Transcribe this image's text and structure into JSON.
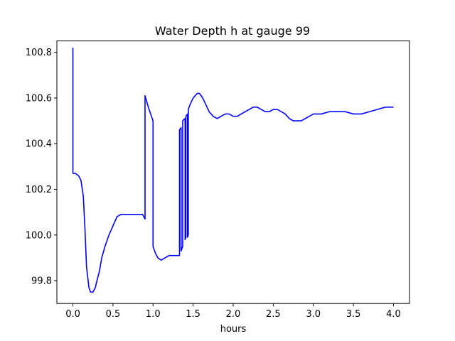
{
  "chart_data": {
    "type": "line",
    "title": "Water Depth h at gauge 99",
    "xlabel": "hours",
    "ylabel": "",
    "xlim": [
      -0.2,
      4.2
    ],
    "ylim": [
      99.7,
      100.85
    ],
    "xticks": [
      0.0,
      0.5,
      1.0,
      1.5,
      2.0,
      2.5,
      3.0,
      3.5,
      4.0
    ],
    "xtick_labels": [
      "0.0",
      "0.5",
      "1.0",
      "1.5",
      "2.0",
      "2.5",
      "3.0",
      "3.5",
      "4.0"
    ],
    "yticks": [
      99.8,
      100.0,
      100.2,
      100.4,
      100.6,
      100.8
    ],
    "ytick_labels": [
      "99.8",
      "100.0",
      "100.2",
      "100.4",
      "100.6",
      "100.8"
    ],
    "grid": false,
    "series": [
      {
        "color": "#0000ff",
        "x": [
          0.0,
          0.0,
          0.0,
          0.03,
          0.07,
          0.1,
          0.13,
          0.15,
          0.17,
          0.2,
          0.22,
          0.25,
          0.28,
          0.3,
          0.33,
          0.36,
          0.4,
          0.45,
          0.5,
          0.55,
          0.6,
          0.65,
          0.7,
          0.75,
          0.78,
          0.82,
          0.87,
          0.9,
          0.9,
          0.95,
          1.0,
          1.0,
          1.03,
          1.06,
          1.1,
          1.15,
          1.2,
          1.25,
          1.3,
          1.33,
          1.33,
          1.35,
          1.35,
          1.37,
          1.37,
          1.4,
          1.4,
          1.41,
          1.41,
          1.43,
          1.43,
          1.44,
          1.44,
          1.46,
          1.5,
          1.55,
          1.58,
          1.62,
          1.66,
          1.7,
          1.75,
          1.8,
          1.85,
          1.9,
          1.95,
          2.0,
          2.05,
          2.1,
          2.15,
          2.2,
          2.25,
          2.3,
          2.35,
          2.4,
          2.45,
          2.5,
          2.55,
          2.6,
          2.65,
          2.7,
          2.75,
          2.8,
          2.85,
          2.9,
          2.95,
          3.0,
          3.1,
          3.2,
          3.3,
          3.4,
          3.5,
          3.6,
          3.7,
          3.8,
          3.9,
          4.0
        ],
        "y": [
          100.82,
          100.82,
          100.27,
          100.27,
          100.26,
          100.24,
          100.17,
          100.03,
          99.86,
          99.77,
          99.75,
          99.75,
          99.77,
          99.8,
          99.84,
          99.9,
          99.95,
          100.0,
          100.04,
          100.08,
          100.09,
          100.09,
          100.09,
          100.09,
          100.09,
          100.09,
          100.09,
          100.07,
          100.61,
          100.55,
          100.5,
          99.95,
          99.92,
          99.9,
          99.89,
          99.9,
          99.91,
          99.91,
          99.91,
          99.91,
          100.46,
          100.47,
          99.93,
          99.95,
          100.5,
          100.51,
          99.98,
          99.99,
          100.52,
          100.53,
          99.99,
          100.0,
          100.55,
          100.57,
          100.6,
          100.62,
          100.62,
          100.6,
          100.57,
          100.54,
          100.52,
          100.51,
          100.52,
          100.53,
          100.53,
          100.52,
          100.52,
          100.53,
          100.54,
          100.55,
          100.56,
          100.56,
          100.55,
          100.54,
          100.54,
          100.55,
          100.55,
          100.54,
          100.53,
          100.51,
          100.5,
          100.5,
          100.5,
          100.51,
          100.52,
          100.53,
          100.53,
          100.54,
          100.54,
          100.54,
          100.53,
          100.53,
          100.54,
          100.55,
          100.56,
          100.56
        ]
      }
    ]
  }
}
